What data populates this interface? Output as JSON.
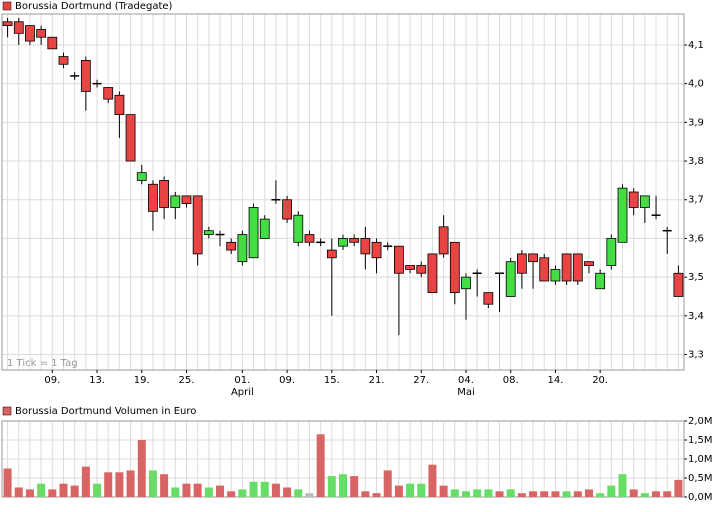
{
  "chart_data": [
    {
      "type": "candlestick",
      "title": "Borussia Dortmund (Tradegate)",
      "note": "1 Tick = 1 Tag",
      "legend_color": "#e84444",
      "up_color": "#44dd44",
      "down_color": "#e84444",
      "categories": [
        null,
        null,
        null,
        null,
        "09.",
        null,
        null,
        null,
        "13.",
        null,
        null,
        null,
        "19.",
        null,
        null,
        null,
        "25.",
        null,
        null,
        null,
        null,
        "01.",
        null,
        null,
        null,
        "09.",
        null,
        null,
        null,
        "15.",
        null,
        null,
        null,
        "21.",
        null,
        null,
        null,
        "27.",
        null,
        null,
        null,
        "04.",
        null,
        null,
        null,
        "08.",
        null,
        null,
        null,
        "14.",
        null,
        null,
        null,
        "20.",
        null,
        null,
        null,
        null,
        null,
        null,
        null
      ],
      "month_labels": [
        null,
        null,
        null,
        null,
        null,
        null,
        null,
        null,
        null,
        null,
        null,
        null,
        null,
        null,
        null,
        null,
        null,
        null,
        null,
        null,
        null,
        "April",
        null,
        null,
        null,
        null,
        null,
        null,
        null,
        null,
        null,
        null,
        null,
        null,
        null,
        null,
        null,
        null,
        null,
        null,
        null,
        "Mai",
        null,
        null,
        null,
        null,
        null,
        null,
        null,
        null,
        null,
        null,
        null,
        null,
        null,
        null,
        null,
        null,
        null,
        null,
        null
      ],
      "open": [
        4.16,
        4.16,
        4.15,
        4.14,
        4.12,
        4.07,
        4.02,
        4.06,
        4.0,
        3.99,
        3.97,
        3.92,
        3.75,
        3.74,
        3.75,
        3.68,
        3.71,
        3.71,
        3.61,
        3.61,
        3.59,
        3.54,
        3.55,
        3.6,
        3.7,
        3.7,
        3.59,
        3.61,
        3.59,
        3.57,
        3.58,
        3.6,
        3.6,
        3.59,
        3.58,
        3.58,
        3.53,
        3.53,
        3.56,
        3.63,
        3.59,
        3.47,
        3.51,
        3.46,
        3.51,
        3.45,
        3.56,
        3.56,
        3.55,
        3.49,
        3.56,
        3.56,
        3.54,
        3.47,
        3.53,
        3.59,
        3.72,
        3.68,
        3.66,
        3.62,
        3.51
      ],
      "high": [
        4.17,
        4.17,
        4.15,
        4.15,
        4.12,
        4.08,
        4.03,
        4.07,
        4.01,
        3.99,
        3.98,
        3.92,
        3.79,
        3.75,
        3.76,
        3.72,
        3.71,
        3.71,
        3.63,
        3.62,
        3.6,
        3.62,
        3.69,
        3.66,
        3.75,
        3.71,
        3.67,
        3.62,
        3.6,
        3.6,
        3.61,
        3.61,
        3.63,
        3.6,
        3.59,
        3.58,
        3.53,
        3.54,
        3.56,
        3.66,
        3.59,
        3.51,
        3.52,
        3.46,
        3.51,
        3.55,
        3.57,
        3.56,
        3.56,
        3.53,
        3.56,
        3.56,
        3.54,
        3.52,
        3.61,
        3.74,
        3.73,
        3.71,
        3.71,
        3.63,
        3.53
      ],
      "low": [
        4.12,
        4.1,
        4.1,
        4.1,
        4.09,
        4.04,
        4.01,
        3.93,
        3.99,
        3.95,
        3.86,
        3.8,
        3.74,
        3.62,
        3.65,
        3.65,
        3.68,
        3.53,
        3.6,
        3.58,
        3.56,
        3.53,
        3.55,
        3.6,
        3.69,
        3.64,
        3.58,
        3.58,
        3.58,
        3.4,
        3.57,
        3.58,
        3.52,
        3.51,
        3.57,
        3.35,
        3.51,
        3.5,
        3.46,
        3.55,
        3.43,
        3.39,
        3.45,
        3.42,
        3.41,
        3.45,
        3.47,
        3.47,
        3.49,
        3.48,
        3.48,
        3.48,
        3.51,
        3.47,
        3.52,
        3.59,
        3.66,
        3.64,
        3.65,
        3.56,
        3.45
      ],
      "close": [
        4.15,
        4.13,
        4.11,
        4.12,
        4.09,
        4.05,
        4.02,
        3.98,
        4.0,
        3.96,
        3.92,
        3.8,
        3.77,
        3.67,
        3.68,
        3.71,
        3.69,
        3.56,
        3.62,
        3.61,
        3.57,
        3.61,
        3.68,
        3.65,
        3.7,
        3.65,
        3.66,
        3.59,
        3.59,
        3.55,
        3.6,
        3.59,
        3.56,
        3.55,
        3.58,
        3.51,
        3.52,
        3.51,
        3.46,
        3.56,
        3.46,
        3.5,
        3.51,
        3.43,
        3.51,
        3.54,
        3.51,
        3.54,
        3.49,
        3.52,
        3.49,
        3.49,
        3.53,
        3.51,
        3.6,
        3.73,
        3.68,
        3.71,
        3.66,
        3.62,
        3.45
      ],
      "ylim": [
        3.26,
        4.18
      ],
      "yticks": [
        {
          "value": 3.3,
          "label": "3,3"
        },
        {
          "value": 3.4,
          "label": "3,4"
        },
        {
          "value": 3.5,
          "label": "3,5"
        },
        {
          "value": 3.6,
          "label": "3,6"
        },
        {
          "value": 3.7,
          "label": "3,7"
        },
        {
          "value": 3.8,
          "label": "3,8"
        },
        {
          "value": 3.9,
          "label": "3,9"
        },
        {
          "value": 4.0,
          "label": "4,0"
        },
        {
          "value": 4.1,
          "label": "4,1"
        }
      ],
      "grid": true
    },
    {
      "type": "bar",
      "title": "Borussia Dortmund Volumen in Euro",
      "legend_color": "#d86464",
      "values": [
        750000,
        250000,
        200000,
        350000,
        200000,
        350000,
        300000,
        800000,
        350000,
        650000,
        650000,
        700000,
        1500000,
        700000,
        600000,
        250000,
        350000,
        350000,
        250000,
        300000,
        150000,
        200000,
        400000,
        400000,
        350000,
        250000,
        200000,
        100000,
        1650000,
        550000,
        600000,
        550000,
        150000,
        100000,
        700000,
        300000,
        350000,
        350000,
        850000,
        300000,
        200000,
        150000,
        200000,
        200000,
        150000,
        200000,
        100000,
        150000,
        150000,
        150000,
        150000,
        150000,
        200000,
        100000,
        300000,
        600000,
        200000,
        100000,
        150000,
        150000,
        450000
      ],
      "colors": [
        "#d86464",
        "#d86464",
        "#d86464",
        "#66dd66",
        "#d86464",
        "#d86464",
        "#d86464",
        "#d86464",
        "#66dd66",
        "#d86464",
        "#d86464",
        "#d86464",
        "#d86464",
        "#66dd66",
        "#d86464",
        "#66dd66",
        "#d86464",
        "#d86464",
        "#66dd66",
        "#d86464",
        "#d86464",
        "#66dd66",
        "#66dd66",
        "#66dd66",
        "#d86464",
        "#d86464",
        "#66dd66",
        "#bbbbbb",
        "#d86464",
        "#66dd66",
        "#66dd66",
        "#d86464",
        "#d86464",
        "#d86464",
        "#d86464",
        "#d86464",
        "#66dd66",
        "#66dd66",
        "#d86464",
        "#d86464",
        "#66dd66",
        "#66dd66",
        "#66dd66",
        "#66dd66",
        "#d86464",
        "#66dd66",
        "#d86464",
        "#d86464",
        "#d86464",
        "#d86464",
        "#66dd66",
        "#d86464",
        "#d86464",
        "#66dd66",
        "#66dd66",
        "#66dd66",
        "#d86464",
        "#66dd66",
        "#d86464",
        "#d86464",
        "#d86464"
      ],
      "ylim": [
        0,
        2000000
      ],
      "yticks": [
        {
          "value": 0,
          "label": "0,0M"
        },
        {
          "value": 500000,
          "label": "0,5M"
        },
        {
          "value": 1000000,
          "label": "1,0M"
        },
        {
          "value": 1500000,
          "label": "1,5M"
        },
        {
          "value": 2000000,
          "label": "2,0M"
        }
      ],
      "grid": true
    }
  ]
}
